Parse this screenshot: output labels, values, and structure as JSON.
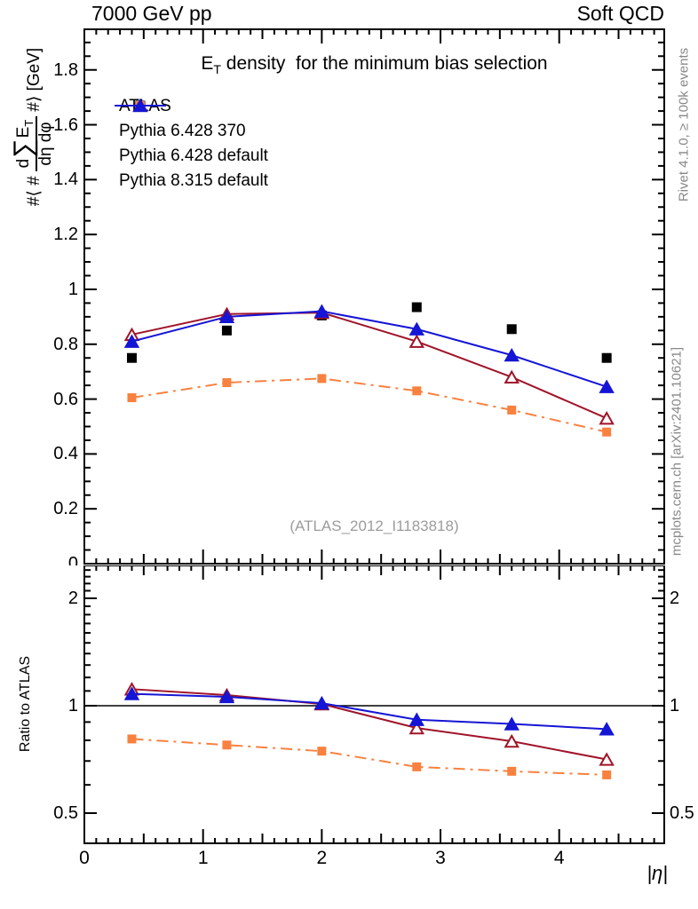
{
  "header": {
    "left": "7000 GeV pp",
    "right": "Soft QCD"
  },
  "side_captions": {
    "rivet": "Rivet 4.1.0, ≥ 100k events",
    "mcplots": "mcplots.cern.ch [arXiv:2401.10621]"
  },
  "main_panel": {
    "title_E": "E",
    "title_sub": "T",
    "title_rest": " density  for the minimum bias selection",
    "watermark": "(ATLAS_2012_I1183818)",
    "ylabel": {
      "prefix": "#⟨ #",
      "num_d": "d",
      "num_sigma": "∑",
      "num_E": "E",
      "num_sub": "T",
      "den": "dη dφ",
      "suffix": "#⟩ [GeV]"
    }
  },
  "ratio_panel": {
    "ylabel": "Ratio to ATLAS",
    "xlabel": "|η|"
  },
  "legend": [
    {
      "label": "ATLAS"
    },
    {
      "label": "Pythia 6.428 370"
    },
    {
      "label": "Pythia 6.428 default"
    },
    {
      "label": "Pythia 8.315 default"
    }
  ],
  "colors": {
    "atlas": "#000000",
    "pythia6_370": "#a01328",
    "pythia6_default": "#f9813f",
    "pythia8_default": "#1515d5",
    "caption_gray": "#888888",
    "watermark_gray": "#9c9c9c"
  },
  "chart_data": [
    {
      "type": "line",
      "panel": "main",
      "title": "E_T density for the minimum bias selection",
      "ylabel": "#< # d Sum E_T / deta dphi #> [GeV]",
      "x": [
        0.4,
        1.2,
        2.0,
        2.8,
        3.6,
        4.4
      ],
      "xlim": [
        0,
        4.885
      ],
      "ylim": [
        0,
        1.948
      ],
      "xticks": {
        "labels": [
          "0",
          "1",
          "2",
          "3",
          "4"
        ],
        "values": [
          0,
          1,
          2,
          3,
          4
        ],
        "minor_step": 0.1,
        "medium_step": 0.5
      },
      "yticks": {
        "labels": [
          "0",
          "0.2",
          "0.4",
          "0.6",
          "0.8",
          "1",
          "1.2",
          "1.4",
          "1.6",
          "1.8"
        ],
        "values": [
          0,
          0.2,
          0.4,
          0.6,
          0.8,
          1.0,
          1.2,
          1.4,
          1.6,
          1.8
        ],
        "minor_step": 0.05
      },
      "series": [
        {
          "name": "ATLAS",
          "color": "#000000",
          "marker": "square",
          "marker_size": 11,
          "fill": "solid",
          "line": "none",
          "values": [
            0.75,
            0.85,
            0.905,
            0.935,
            0.855,
            0.75
          ]
        },
        {
          "name": "Pythia 6.428 default",
          "color": "#f9813f",
          "marker": "square",
          "marker_size": 10,
          "fill": "solid",
          "line": "dashdot",
          "values": [
            0.605,
            0.66,
            0.675,
            0.63,
            0.56,
            0.48
          ]
        },
        {
          "name": "Pythia 6.428 370",
          "color": "#a01328",
          "marker": "triangle",
          "marker_size": 14,
          "fill": "open",
          "line": "solid",
          "values": [
            0.835,
            0.91,
            0.915,
            0.81,
            0.68,
            0.53
          ]
        },
        {
          "name": "Pythia 8.315 default",
          "color": "#1515d5",
          "marker": "triangle",
          "marker_size": 14,
          "fill": "solid",
          "line": "solid",
          "values": [
            0.81,
            0.9,
            0.92,
            0.855,
            0.76,
            0.645
          ]
        }
      ],
      "legend_position": "top-left",
      "grid": false
    },
    {
      "type": "ratio",
      "panel": "ratio",
      "ylabel": "Ratio to ATLAS",
      "xlabel": "|eta|",
      "yscale": "log",
      "ylim": [
        0.412,
        2.473
      ],
      "reference_line": 1.0,
      "x": [
        0.4,
        1.2,
        2.0,
        2.8,
        3.6,
        4.4
      ],
      "yticks": {
        "labels": [
          "0.5",
          "1",
          "2"
        ],
        "values": [
          0.5,
          1,
          2
        ],
        "minor": [
          0.6,
          0.7,
          0.8,
          0.9,
          1.1,
          1.2,
          1.3,
          1.4,
          1.5,
          1.6,
          1.7,
          1.8,
          1.9,
          2.1,
          2.2,
          2.3,
          2.4
        ]
      },
      "series": [
        {
          "name": "Pythia 6.428 default",
          "color": "#f9813f",
          "marker": "square",
          "marker_size": 10,
          "fill": "solid",
          "line": "dashdot",
          "values": [
            0.807,
            0.776,
            0.746,
            0.674,
            0.655,
            0.64
          ]
        },
        {
          "name": "Pythia 6.428 370",
          "color": "#a01328",
          "marker": "triangle",
          "marker_size": 14,
          "fill": "open",
          "line": "solid",
          "values": [
            1.113,
            1.071,
            1.011,
            0.866,
            0.795,
            0.707
          ]
        },
        {
          "name": "Pythia 8.315 default",
          "color": "#1515d5",
          "marker": "triangle",
          "marker_size": 14,
          "fill": "solid",
          "line": "solid",
          "values": [
            1.08,
            1.059,
            1.017,
            0.914,
            0.889,
            0.86
          ]
        }
      ]
    }
  ]
}
